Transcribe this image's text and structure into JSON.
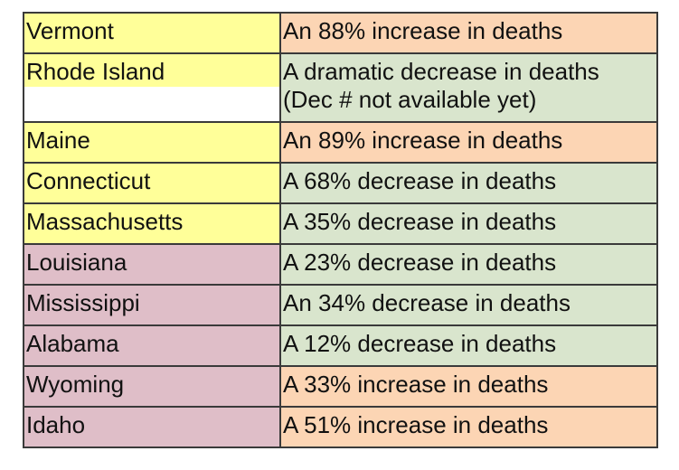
{
  "colors": {
    "yellow": "#ffff99",
    "pink": "#dfbec8",
    "orange": "#fcd5b4",
    "green": "#d9e5cd",
    "border": "#3a3a3a"
  },
  "rows": [
    {
      "state": "Vermont",
      "state_color": "yellow",
      "lines": [
        "An 88% increase in deaths"
      ],
      "trend_color": "orange"
    },
    {
      "state": "Rhode Island",
      "state_color": "yellow",
      "state_fill_partial": true,
      "lines": [
        "A dramatic decrease in deaths",
        "(Dec # not available yet)"
      ],
      "trend_color": "green"
    },
    {
      "state": "Maine",
      "state_color": "yellow",
      "lines": [
        "An 89% increase in deaths"
      ],
      "trend_color": "orange"
    },
    {
      "state": "Connecticut",
      "state_color": "yellow",
      "lines": [
        "A 68% decrease in deaths"
      ],
      "trend_color": "green"
    },
    {
      "state": "Massachusetts",
      "state_color": "yellow",
      "lines": [
        "A 35% decrease in deaths"
      ],
      "trend_color": "green"
    },
    {
      "state": "Louisiana",
      "state_color": "pink",
      "lines": [
        "A 23% decrease in deaths"
      ],
      "trend_color": "green"
    },
    {
      "state": "Mississippi",
      "state_color": "pink",
      "lines": [
        "An 34% decrease in deaths"
      ],
      "trend_color": "green"
    },
    {
      "state": "Alabama",
      "state_color": "pink",
      "lines": [
        "A 12% decrease in deaths"
      ],
      "trend_color": "green"
    },
    {
      "state": "Wyoming",
      "state_color": "pink",
      "lines": [
        "A 33% increase in deaths"
      ],
      "trend_color": "orange"
    },
    {
      "state": "Idaho",
      "state_color": "pink",
      "lines": [
        "A 51% increase in deaths"
      ],
      "trend_color": "orange"
    }
  ]
}
